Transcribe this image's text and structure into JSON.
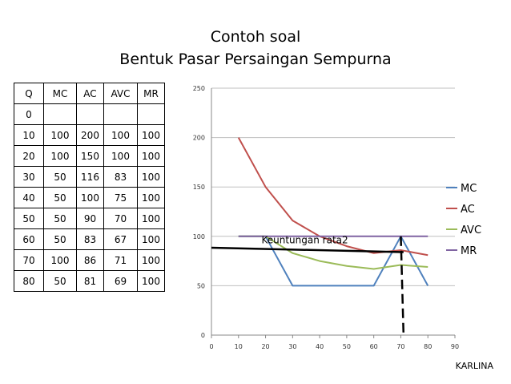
{
  "title": "Contoh soal",
  "subtitle": "Bentuk  Pasar Persaingan Sempurna",
  "table": {
    "headers": [
      "Q",
      "MC",
      "AC",
      "AVC",
      "MR"
    ],
    "rows": [
      [
        "0",
        "",
        "",
        "",
        ""
      ],
      [
        "10",
        "100",
        "200",
        "100",
        "100"
      ],
      [
        "20",
        "100",
        "150",
        "100",
        "100"
      ],
      [
        "30",
        "50",
        "116",
        "83",
        "100"
      ],
      [
        "40",
        "50",
        "100",
        "75",
        "100"
      ],
      [
        "50",
        "50",
        "90",
        "70",
        "100"
      ],
      [
        "60",
        "50",
        "83",
        "67",
        "100"
      ],
      [
        "70",
        "100",
        "86",
        "71",
        "100"
      ],
      [
        "80",
        "50",
        "81",
        "69",
        "100"
      ]
    ]
  },
  "chart_data": {
    "type": "line",
    "x": [
      0,
      10,
      20,
      30,
      40,
      50,
      60,
      70,
      80
    ],
    "xlim": [
      0,
      90
    ],
    "ylim": [
      0,
      250
    ],
    "x_ticks": [
      0,
      10,
      20,
      30,
      40,
      50,
      60,
      70,
      80,
      90
    ],
    "y_ticks": [
      0,
      50,
      100,
      150,
      200,
      250
    ],
    "grid": "horizontal",
    "legend": "right",
    "series": [
      {
        "name": "MC",
        "color": "#4f81bd",
        "values": [
          null,
          100,
          100,
          50,
          50,
          50,
          50,
          100,
          50
        ]
      },
      {
        "name": "AC",
        "color": "#c0504d",
        "values": [
          null,
          200,
          150,
          116,
          100,
          90,
          83,
          86,
          81
        ]
      },
      {
        "name": "AVC",
        "color": "#9bbb59",
        "values": [
          null,
          100,
          100,
          83,
          75,
          70,
          67,
          71,
          69
        ]
      },
      {
        "name": "MR",
        "color": "#8064a2",
        "values": [
          null,
          100,
          100,
          100,
          100,
          100,
          100,
          100,
          100
        ]
      }
    ],
    "annotations": {
      "label": "Keuntungan rata2",
      "label_at": [
        18.5,
        93
      ],
      "solid_line": {
        "from": [
          0,
          88.5
        ],
        "to": [
          71,
          84
        ],
        "color": "#000000"
      },
      "dashed_line": {
        "from": [
          70,
          100
        ],
        "to": [
          71,
          0
        ],
        "color": "#000000"
      }
    }
  },
  "footer": "KARLINA"
}
